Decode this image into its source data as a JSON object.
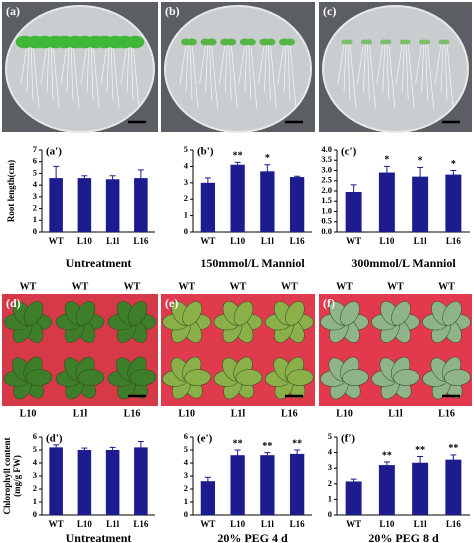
{
  "photos": [
    {
      "label": "(a)"
    },
    {
      "label": "(b)"
    },
    {
      "label": "(c)"
    },
    {
      "label": "(d)",
      "top": [
        "WT",
        "WT",
        "WT"
      ],
      "bottom": [
        "L10",
        "L1l",
        "L16"
      ]
    },
    {
      "label": "(e)",
      "top": [
        "WT",
        "WT",
        "WT"
      ],
      "bottom": [
        "L10",
        "L1l",
        "L16"
      ]
    },
    {
      "label": "(f)",
      "top": [
        "WT",
        "WT",
        "WT"
      ],
      "bottom": [
        "L10",
        "L1l",
        "L16"
      ]
    }
  ],
  "chart_data": [
    {
      "type": "bar",
      "panel": "(a')",
      "title": "Untreatment",
      "ylabel": "Root length(cm)",
      "color": "#1c1c8e",
      "categories": [
        "WT",
        "L10",
        "L1l",
        "L16"
      ],
      "values": [
        4.6,
        4.6,
        4.5,
        4.6
      ],
      "errors": [
        1.0,
        0.2,
        0.3,
        0.7
      ],
      "ylim": [
        0,
        7
      ],
      "yticks": [
        0,
        1,
        2,
        3,
        4,
        5,
        6,
        7
      ]
    },
    {
      "type": "bar",
      "panel": "(b')",
      "title": "150mmol/L Manniol",
      "color": "#1c1c8e",
      "categories": [
        "WT",
        "L10",
        "L1l",
        "L16"
      ],
      "values": [
        3.0,
        4.1,
        3.7,
        3.35
      ],
      "errors": [
        0.3,
        0.15,
        0.4,
        0.05
      ],
      "significance": [
        null,
        "**",
        "*",
        null
      ],
      "ylim": [
        0,
        5
      ],
      "yticks": [
        0,
        1,
        2,
        3,
        4,
        5
      ]
    },
    {
      "type": "bar",
      "panel": "(c')",
      "title": "300mmol/L Manniol",
      "color": "#1c1c8e",
      "categories": [
        "WT",
        "L10",
        "L1l",
        "L16"
      ],
      "values": [
        1.95,
        2.9,
        2.7,
        2.8
      ],
      "errors": [
        0.35,
        0.3,
        0.45,
        0.2
      ],
      "significance": [
        null,
        "*",
        "*",
        "*"
      ],
      "ylim": [
        0,
        4
      ],
      "yticks": [
        {
          "value": 0,
          "label": "0.0"
        },
        0.5,
        {
          "value": 1,
          "label": "1.0"
        },
        1.5,
        {
          "value": 2,
          "label": "2.0"
        },
        2.5,
        {
          "value": 3,
          "label": "3.0"
        },
        3.5,
        {
          "value": 4,
          "label": "4.0"
        }
      ]
    },
    {
      "type": "bar",
      "panel": "(d')",
      "title": "Untreatment",
      "ylabel": [
        "Chlorophyll content",
        "(mg/g FW)"
      ],
      "color": "#1c1c8e",
      "categories": [
        "WT",
        "L10",
        "L1l",
        "L16"
      ],
      "values": [
        5.2,
        5.0,
        5.0,
        5.2
      ],
      "errors": [
        0.2,
        0.15,
        0.2,
        0.45
      ],
      "ylim": [
        0,
        6
      ],
      "yticks": [
        0,
        1,
        2,
        3,
        4,
        5,
        6
      ]
    },
    {
      "type": "bar",
      "panel": "(e')",
      "title": "20% PEG 4 d",
      "color": "#1c1c8e",
      "categories": [
        "WT",
        "L10",
        "L1l",
        "L16"
      ],
      "values": [
        2.6,
        4.6,
        4.6,
        4.7
      ],
      "errors": [
        0.3,
        0.4,
        0.2,
        0.3
      ],
      "significance": [
        null,
        "**",
        "**",
        "**"
      ],
      "ylim": [
        0,
        6
      ],
      "yticks": [
        0,
        1,
        2,
        3,
        4,
        5,
        6
      ]
    },
    {
      "type": "bar",
      "panel": "(f')",
      "title": "20% PEG 8 d",
      "color": "#1c1c8e",
      "categories": [
        "WT",
        "L10",
        "L1l",
        "L16"
      ],
      "values": [
        2.15,
        3.2,
        3.35,
        3.55
      ],
      "errors": [
        0.15,
        0.2,
        0.4,
        0.3
      ],
      "significance": [
        null,
        "**",
        "**",
        "**"
      ],
      "ylim": [
        0,
        5
      ],
      "yticks": [
        0,
        1,
        2,
        3,
        4,
        5
      ]
    }
  ]
}
